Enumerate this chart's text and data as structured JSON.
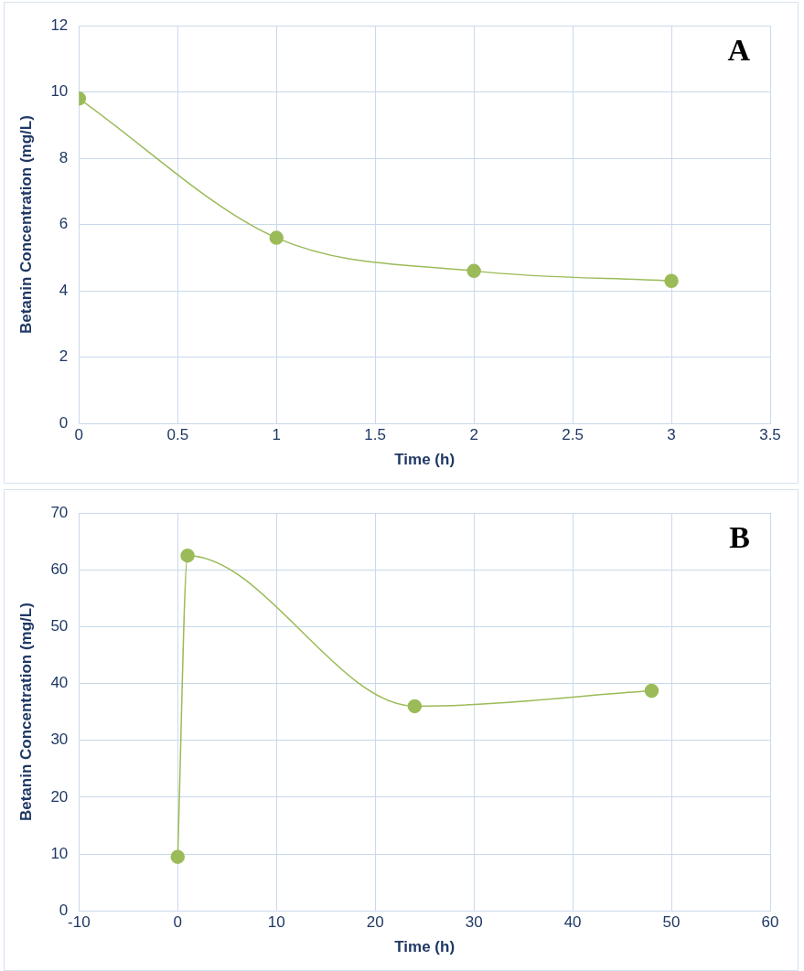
{
  "chart_data": [
    {
      "type": "line",
      "xlabel": "Time (h)",
      "ylabel": "Betanin Concentration (mg/L)",
      "annotations": [
        "A"
      ],
      "x": [
        0,
        1,
        2,
        3
      ],
      "series": [
        {
          "color": "#9bbb59",
          "values": [
            9.8,
            5.6,
            4.6,
            4.3
          ]
        }
      ],
      "xlim": [
        0,
        3.5
      ],
      "xticks": [
        0,
        0.5,
        1,
        1.5,
        2,
        2.5,
        3,
        3.5
      ],
      "ylim": [
        0,
        12
      ],
      "yticks": [
        0,
        2,
        4,
        6,
        8,
        10,
        12
      ],
      "grid": true,
      "legend": false,
      "marker": "circle",
      "line_style": "solid"
    },
    {
      "type": "line",
      "xlabel": "Time (h)",
      "ylabel": "Betanin Concentration (mg/L)",
      "annotations": [
        "B"
      ],
      "x": [
        0,
        1,
        24,
        48
      ],
      "series": [
        {
          "color": "#9bbb59",
          "values": [
            9.5,
            62.5,
            36,
            38.7
          ]
        }
      ],
      "xlim": [
        -10,
        60
      ],
      "xticks": [
        -10,
        0,
        10,
        20,
        30,
        40,
        50,
        60
      ],
      "ylim": [
        0,
        70
      ],
      "yticks": [
        0,
        10,
        20,
        30,
        40,
        50,
        60,
        70
      ],
      "grid": true,
      "legend": false,
      "marker": "circle",
      "line_style": "solid"
    }
  ]
}
